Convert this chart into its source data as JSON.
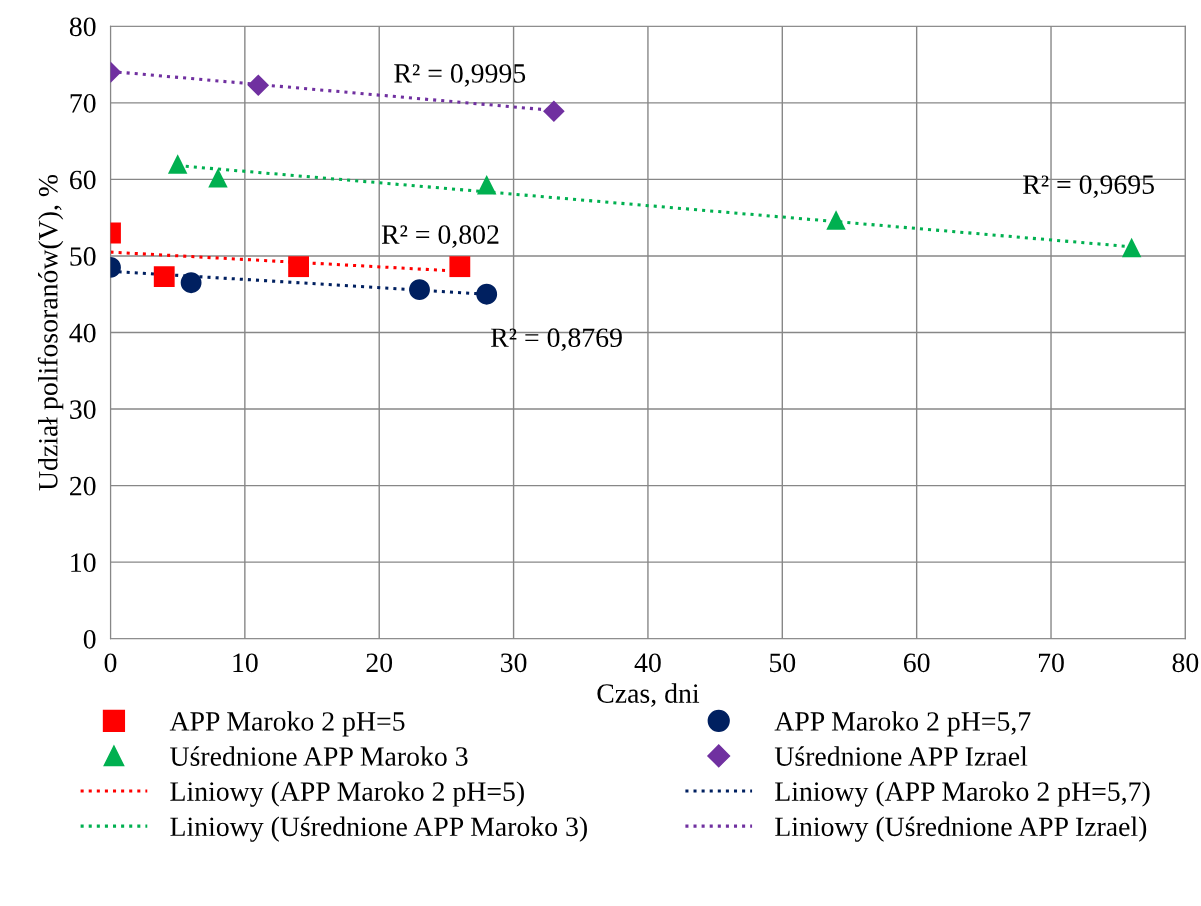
{
  "chart_data": {
    "type": "scatter",
    "xlabel": "Czas, dni",
    "ylabel": "Udział polifosoranów(V), %",
    "xlim": [
      0,
      80
    ],
    "ylim": [
      0,
      80
    ],
    "xticks": [
      0,
      10,
      20,
      30,
      40,
      50,
      60,
      70,
      80
    ],
    "yticks": [
      0,
      10,
      20,
      30,
      40,
      50,
      60,
      70,
      80
    ],
    "grid": true,
    "legend": "bottom",
    "series": [
      {
        "name": "APP Maroko 2 pH=5",
        "marker": "square",
        "color": "#ff0000",
        "x": [
          0,
          4,
          14,
          26
        ],
        "values": [
          53.0,
          47.3,
          48.6,
          48.6
        ]
      },
      {
        "name": "APP Maroko 2 pH=5,7",
        "marker": "circle",
        "color": "#002060",
        "x": [
          0,
          6,
          23,
          28
        ],
        "values": [
          48.5,
          46.5,
          45.6,
          45.0
        ]
      },
      {
        "name": "Uśrednione APP Maroko 3",
        "marker": "triangle",
        "color": "#00b050",
        "x": [
          5,
          8,
          28,
          54,
          76
        ],
        "values": [
          62.0,
          60.2,
          59.3,
          54.7,
          51.1
        ]
      },
      {
        "name": "Uśrednione APP Izrael",
        "marker": "diamond",
        "color": "#7030a0",
        "x": [
          0,
          11,
          33
        ],
        "values": [
          74.0,
          72.3,
          68.9
        ]
      },
      {
        "name": "Liniowy (APP Maroko 2 pH=5)",
        "type": "line",
        "line_style": "dotted",
        "color": "#ff0000",
        "x": [
          0,
          26
        ],
        "values": [
          50.5,
          48.0
        ]
      },
      {
        "name": "Liniowy (APP Maroko 2 pH=5,7)",
        "type": "line",
        "line_style": "dotted",
        "color": "#002060",
        "x": [
          0,
          28
        ],
        "values": [
          48.0,
          45.0
        ]
      },
      {
        "name": "Liniowy (Uśrednione APP Maroko 3)",
        "type": "line",
        "line_style": "dotted",
        "color": "#00b050",
        "x": [
          5,
          76
        ],
        "values": [
          61.8,
          51.2
        ]
      },
      {
        "name": "Liniowy (Uśrednione APP Izrael)",
        "type": "line",
        "line_style": "dotted",
        "color": "#7030a0",
        "x": [
          0,
          33
        ],
        "values": [
          74.1,
          69.0
        ]
      }
    ],
    "annotations": [
      "R² = 0,9995",
      "R² = 0,802",
      "R² = 0,8769",
      "R² = 0,9695"
    ]
  }
}
